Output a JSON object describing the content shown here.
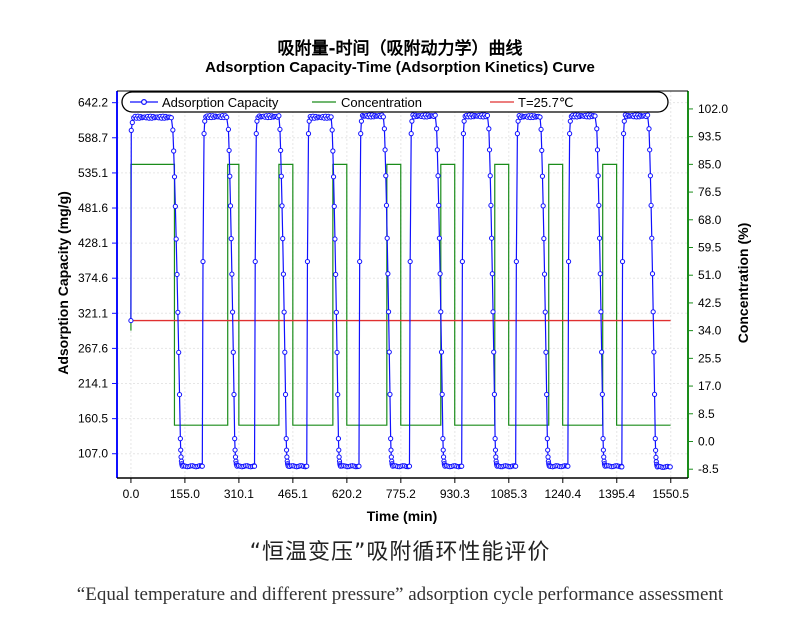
{
  "chart_data": {
    "type": "line",
    "title": "吸附量-时间（吸附动力学）曲线",
    "subtitle": "Adsorption Capacity-Time (Adsorption Kinetics) Curve",
    "xlabel": "Time (min)",
    "ylabel_left": "Adsorption Capacity (mg/g)",
    "ylabel_right": "Concentration (%)",
    "x_ticks": [
      "0.0",
      "155.0",
      "310.1",
      "465.1",
      "620.2",
      "775.2",
      "930.3",
      "1085.3",
      "1240.4",
      "1395.4",
      "1550.5"
    ],
    "y_left_ticks": [
      "107.0",
      "160.5",
      "214.1",
      "267.6",
      "321.1",
      "374.6",
      "428.1",
      "481.6",
      "535.1",
      "588.7",
      "642.2"
    ],
    "y_right_ticks": [
      "-8.5",
      "0.0",
      "8.5",
      "17.0",
      "25.5",
      "34.0",
      "42.5",
      "51.0",
      "59.5",
      "68.0",
      "76.5",
      "85.0",
      "93.5",
      "102.0"
    ],
    "xlim": [
      -40,
      1600
    ],
    "ylim_left": [
      70,
      660
    ],
    "ylim_right": [
      -11.2,
      107.5
    ],
    "legend_position": "top",
    "grid": true,
    "series": [
      {
        "name": "Adsorption Capacity",
        "axis": "left",
        "color": "#1010ff",
        "marker": "circle",
        "cycles": [
          {
            "start": 0,
            "rise_end": 8,
            "plateau": 620,
            "drop_start": 118,
            "drop_end": 142,
            "bottom_start": 148,
            "bottom": 88,
            "end": 205
          },
          {
            "start": 205,
            "rise_end": 215,
            "plateau": 621,
            "drop_start": 278,
            "drop_end": 298,
            "bottom_start": 305,
            "bottom": 88,
            "end": 355
          },
          {
            "start": 355,
            "rise_end": 365,
            "plateau": 621,
            "drop_start": 426,
            "drop_end": 446,
            "bottom_start": 452,
            "bottom": 88,
            "end": 505
          },
          {
            "start": 505,
            "rise_end": 515,
            "plateau": 620,
            "drop_start": 576,
            "drop_end": 596,
            "bottom_start": 602,
            "bottom": 88,
            "end": 655
          },
          {
            "start": 655,
            "rise_end": 665,
            "plateau": 622,
            "drop_start": 726,
            "drop_end": 746,
            "bottom_start": 752,
            "bottom": 88,
            "end": 800
          },
          {
            "start": 800,
            "rise_end": 810,
            "plateau": 622,
            "drop_start": 876,
            "drop_end": 896,
            "bottom_start": 902,
            "bottom": 88,
            "end": 950
          },
          {
            "start": 950,
            "rise_end": 960,
            "plateau": 622,
            "drop_start": 1026,
            "drop_end": 1046,
            "bottom_start": 1052,
            "bottom": 88,
            "end": 1105
          },
          {
            "start": 1105,
            "rise_end": 1115,
            "plateau": 621,
            "drop_start": 1176,
            "drop_end": 1196,
            "bottom_start": 1202,
            "bottom": 88,
            "end": 1255
          },
          {
            "start": 1255,
            "rise_end": 1265,
            "plateau": 622,
            "drop_start": 1336,
            "drop_end": 1356,
            "bottom_start": 1362,
            "bottom": 88,
            "end": 1410
          },
          {
            "start": 1410,
            "rise_end": 1420,
            "plateau": 622,
            "drop_start": 1486,
            "drop_end": 1506,
            "bottom_start": 1512,
            "bottom": 87,
            "end": 1550
          }
        ]
      },
      {
        "name": "Concentration",
        "axis": "right",
        "color": "#1a8c1a",
        "x": [
          0,
          0,
          125,
          125,
          278,
          278,
          310,
          310,
          425,
          425,
          465,
          465,
          580,
          580,
          620,
          620,
          735,
          735,
          775,
          775,
          890,
          890,
          930,
          930,
          1045,
          1045,
          1085,
          1085,
          1200,
          1200,
          1240,
          1240,
          1355,
          1355,
          1395,
          1395,
          1550
        ],
        "y": [
          34,
          85,
          85,
          5,
          5,
          85,
          85,
          5,
          5,
          85,
          85,
          5,
          5,
          85,
          85,
          5,
          5,
          85,
          85,
          5,
          5,
          85,
          85,
          5,
          5,
          85,
          85,
          5,
          5,
          85,
          85,
          5,
          5,
          85,
          85,
          5,
          5
        ]
      },
      {
        "name": "T=25.7℃",
        "axis": "left",
        "color": "#e03030",
        "x": [
          0,
          1550
        ],
        "y": [
          310,
          310
        ]
      }
    ]
  },
  "caption": {
    "chinese": "“恒温变压”吸附循环性能评价",
    "english": "“Equal temperature and different pressure” adsorption cycle performance assessment"
  }
}
